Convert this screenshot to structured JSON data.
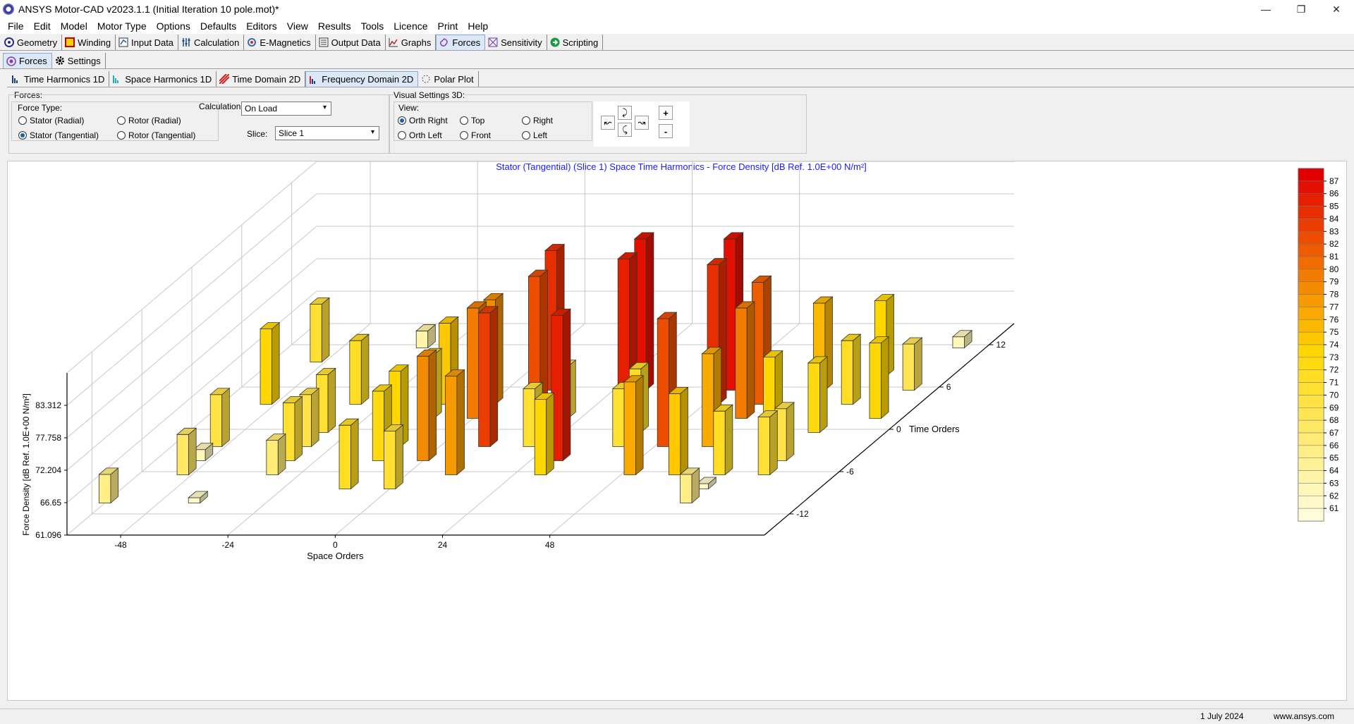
{
  "window": {
    "title": "ANSYS Motor-CAD v2023.1.1 (Initial Iteration 10 pole.mot)*",
    "controls": [
      "—",
      "❐",
      "✕"
    ]
  },
  "menu": [
    "File",
    "Edit",
    "Model",
    "Motor Type",
    "Options",
    "Defaults",
    "Editors",
    "View",
    "Results",
    "Tools",
    "Licence",
    "Print",
    "Help"
  ],
  "main_tabs": [
    {
      "label": "Geometry",
      "icon": "geometry-icon",
      "active": false
    },
    {
      "label": "Winding",
      "icon": "winding-icon",
      "active": false
    },
    {
      "label": "Input Data",
      "icon": "input-data-icon",
      "active": false
    },
    {
      "label": "Calculation",
      "icon": "calculation-icon",
      "active": false
    },
    {
      "label": "E-Magnetics",
      "icon": "e-magnetics-icon",
      "active": false
    },
    {
      "label": "Output Data",
      "icon": "output-data-icon",
      "active": false
    },
    {
      "label": "Graphs",
      "icon": "graphs-icon",
      "active": false
    },
    {
      "label": "Forces",
      "icon": "forces-icon",
      "active": true
    },
    {
      "label": "Sensitivity",
      "icon": "sensitivity-icon",
      "active": false
    },
    {
      "label": "Scripting",
      "icon": "scripting-icon",
      "active": false
    }
  ],
  "sub_tabs": [
    {
      "label": "Forces",
      "icon": "forces-icon",
      "active": true
    },
    {
      "label": "Settings",
      "icon": "gear-icon",
      "active": false
    }
  ],
  "view_tabs": [
    {
      "label": "Time Harmonics 1D",
      "icon": "bar-chart-icon",
      "active": false
    },
    {
      "label": "Space Harmonics 1D",
      "icon": "bar-chart-icon",
      "active": false
    },
    {
      "label": "Time Domain 2D",
      "icon": "hatch-icon",
      "active": false
    },
    {
      "label": "Frequency Domain 2D",
      "icon": "bar-chart-icon",
      "active": true
    },
    {
      "label": "Polar Plot",
      "icon": "polar-icon",
      "active": false
    }
  ],
  "forces_panel": {
    "title": "Forces:",
    "force_type_label": "Force Type:",
    "options": [
      {
        "label": "Stator (Radial)",
        "checked": false
      },
      {
        "label": "Rotor (Radial)",
        "checked": false
      },
      {
        "label": "Stator (Tangential)",
        "checked": true
      },
      {
        "label": "Rotor (Tangential)",
        "checked": false
      }
    ],
    "calculation_label": "Calculation:",
    "calculation_value": "On Load",
    "slice_label": "Slice:",
    "slice_value": "Slice 1"
  },
  "visual_panel": {
    "title": "Visual Settings 3D:",
    "view_label": "View:",
    "views": [
      {
        "label": "Orth Right",
        "checked": true
      },
      {
        "label": "Top",
        "checked": false
      },
      {
        "label": "Right",
        "checked": false
      },
      {
        "label": "Orth Left",
        "checked": false
      },
      {
        "label": "Front",
        "checked": false
      },
      {
        "label": "Left",
        "checked": false
      }
    ],
    "zoom_in": "+",
    "zoom_out": "-"
  },
  "chart_data": {
    "type": "bar3d",
    "title": "Stator (Tangential) (Slice 1) Space Time Harmonics - Force Density [dB Ref. 1.0E+00 N/m²]",
    "xlabel": "Space Orders",
    "ylabel": "Time Orders",
    "zlabel": "Force Density [dB Ref. 1.0E+00 N/m²]",
    "x_ticks": [
      "-48",
      "-24",
      "0",
      "24",
      "48"
    ],
    "y_ticks": [
      "-12",
      "-6",
      "0",
      "6",
      "12"
    ],
    "z_ticks": [
      "61.096",
      "66.65",
      "72.204",
      "77.758",
      "83.312"
    ],
    "zlim": [
      61.096,
      88.866
    ],
    "colorbar_ticks": [
      "61",
      "62",
      "63",
      "64",
      "65",
      "66",
      "67",
      "68",
      "69",
      "70",
      "71",
      "72",
      "73",
      "74",
      "75",
      "76",
      "77",
      "78",
      "79",
      "80",
      "81",
      "82",
      "83",
      "84",
      "85",
      "86",
      "87"
    ],
    "colorbar_range": [
      60,
      88
    ],
    "bars": [
      {
        "x": -60,
        "y": -10,
        "z": 66
      },
      {
        "x": -50,
        "y": 10,
        "z": 71
      },
      {
        "x": -50,
        "y": 4,
        "z": 74
      },
      {
        "x": -50,
        "y": -2,
        "z": 70
      },
      {
        "x": -50,
        "y": -4,
        "z": 63
      },
      {
        "x": -50,
        "y": -6,
        "z": 68
      },
      {
        "x": -40,
        "y": -10,
        "z": 62
      },
      {
        "x": -30,
        "y": 12,
        "z": 64
      },
      {
        "x": -30,
        "y": 4,
        "z": 72
      },
      {
        "x": -30,
        "y": 0,
        "z": 71
      },
      {
        "x": -30,
        "y": -2,
        "z": 70
      },
      {
        "x": -30,
        "y": -4,
        "z": 71
      },
      {
        "x": -30,
        "y": -6,
        "z": 67
      },
      {
        "x": -20,
        "y": 14,
        "z": 64
      },
      {
        "x": -10,
        "y": 4,
        "z": 75
      },
      {
        "x": -10,
        "y": 2,
        "z": 72
      },
      {
        "x": -10,
        "y": -2,
        "z": 74
      },
      {
        "x": -10,
        "y": -4,
        "z": 73
      },
      {
        "x": -10,
        "y": -8,
        "z": 72
      },
      {
        "x": 0,
        "y": 2,
        "z": 80
      },
      {
        "x": 0,
        "y": 4,
        "z": 79
      },
      {
        "x": 0,
        "y": -4,
        "z": 79
      },
      {
        "x": 0,
        "y": -8,
        "z": 71
      },
      {
        "x": 10,
        "y": 6,
        "z": 85
      },
      {
        "x": 10,
        "y": 4,
        "z": 83
      },
      {
        "x": 10,
        "y": -2,
        "z": 84
      },
      {
        "x": 10,
        "y": -6,
        "z": 78
      },
      {
        "x": 20,
        "y": 2,
        "z": 70
      },
      {
        "x": 20,
        "y": -2,
        "z": 71
      },
      {
        "x": 30,
        "y": 6,
        "z": 87
      },
      {
        "x": 30,
        "y": 4,
        "z": 86
      },
      {
        "x": 30,
        "y": -4,
        "z": 86
      },
      {
        "x": 30,
        "y": -6,
        "z": 74
      },
      {
        "x": 40,
        "y": 0,
        "z": 72
      },
      {
        "x": 40,
        "y": -2,
        "z": 71
      },
      {
        "x": 50,
        "y": 6,
        "z": 87
      },
      {
        "x": 50,
        "y": 4,
        "z": 85
      },
      {
        "x": 50,
        "y": -2,
        "z": 83
      },
      {
        "x": 50,
        "y": -6,
        "z": 77
      },
      {
        "x": 60,
        "y": 4,
        "z": 82
      },
      {
        "x": 60,
        "y": 2,
        "z": 80
      },
      {
        "x": 60,
        "y": -2,
        "z": 77
      },
      {
        "x": 60,
        "y": -6,
        "z": 75
      },
      {
        "x": 70,
        "y": 6,
        "z": 76
      },
      {
        "x": 70,
        "y": 0,
        "z": 74
      },
      {
        "x": 70,
        "y": -6,
        "z": 72
      },
      {
        "x": 70,
        "y": -8,
        "z": 62
      },
      {
        "x": 70,
        "y": -10,
        "z": 66
      },
      {
        "x": 80,
        "y": 8,
        "z": 74
      },
      {
        "x": 80,
        "y": 4,
        "z": 72
      },
      {
        "x": 80,
        "y": 0,
        "z": 73
      },
      {
        "x": 80,
        "y": -4,
        "z": 70
      },
      {
        "x": 80,
        "y": -6,
        "z": 71
      },
      {
        "x": 90,
        "y": 12,
        "z": 63
      },
      {
        "x": 90,
        "y": 6,
        "z": 69
      },
      {
        "x": 90,
        "y": 2,
        "z": 74
      }
    ]
  },
  "status": {
    "date": "1 July 2024",
    "website": "www.ansys.com"
  }
}
